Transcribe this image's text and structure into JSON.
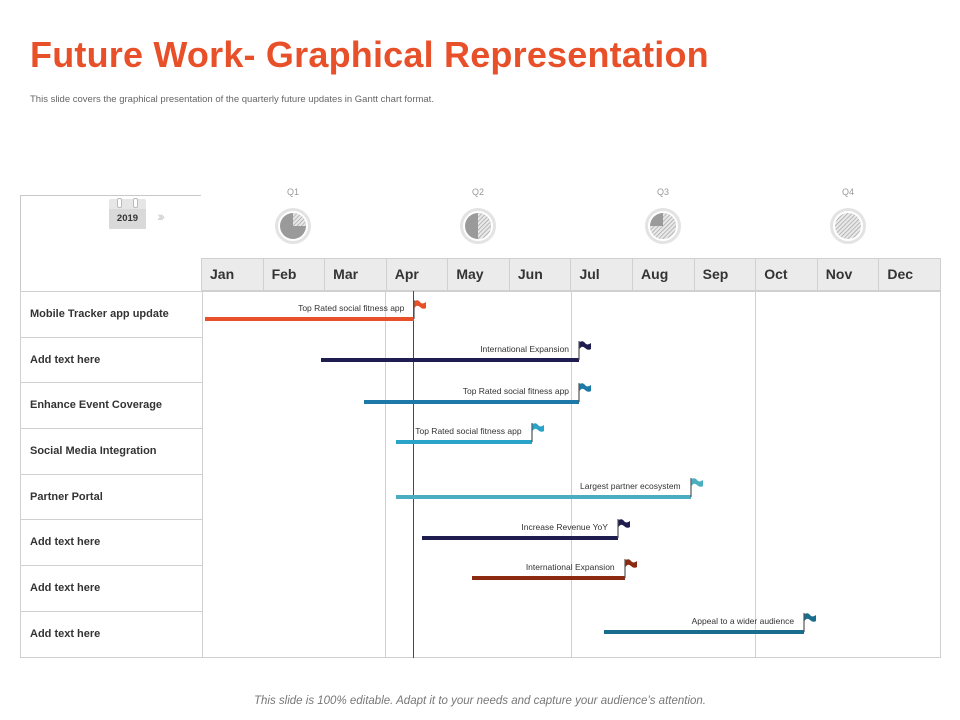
{
  "header": {
    "title": "Future Work- Graphical Representation",
    "subtitle": "This slide covers the graphical presentation of the quarterly future updates in Gantt chart format."
  },
  "year": "2019",
  "quarters": [
    "Q1",
    "Q2",
    "Q3",
    "Q4"
  ],
  "months": [
    "Jan",
    "Feb",
    "Mar",
    "Apr",
    "May",
    "Jun",
    "Jul",
    "Aug",
    "Sep",
    "Oct",
    "Nov",
    "Dec"
  ],
  "tasks": [
    "Mobile Tracker app update",
    "Add text here",
    "Enhance Event Coverage",
    "Social Media Integration",
    "Partner Portal",
    "Add text here",
    "Add text here",
    "Add text here"
  ],
  "chart_data": {
    "type": "gantt",
    "today_marker_month": 4.46,
    "bars": [
      {
        "task": "Mobile Tracker app update",
        "label": "Top Rated social fitness app",
        "start_month": 1.07,
        "end_month": 4.46,
        "color": "#e8502a"
      },
      {
        "task": "Add text here",
        "label": "International Expansion",
        "start_month": 2.95,
        "end_month": 7.13,
        "color": "#1f1c4f"
      },
      {
        "task": "Enhance Event Coverage",
        "label": "Top Rated social fitness app",
        "start_month": 3.65,
        "end_month": 7.13,
        "color": "#1d79a8"
      },
      {
        "task": "Social Media Integration",
        "label": "Top Rated social fitness app",
        "start_month": 4.17,
        "end_month": 6.36,
        "color": "#2aa3c9"
      },
      {
        "task": "Partner Portal",
        "label": "Largest partner ecosystem",
        "start_month": 4.17,
        "end_month": 8.94,
        "color": "#4aaec0"
      },
      {
        "task": "Add text here",
        "label": "Increase Revenue YoY",
        "start_month": 4.58,
        "end_month": 7.76,
        "color": "#1f1c4f"
      },
      {
        "task": "Add text here",
        "label": "International Expansion",
        "start_month": 5.39,
        "end_month": 7.87,
        "color": "#8b2a10"
      },
      {
        "task": "Add text here",
        "label": "Appeal to a wider audience",
        "start_month": 7.54,
        "end_month": 10.78,
        "color": "#1a6d8c"
      }
    ]
  },
  "footer": "This slide is 100% editable. Adapt it to your needs and capture your audience’s attention."
}
